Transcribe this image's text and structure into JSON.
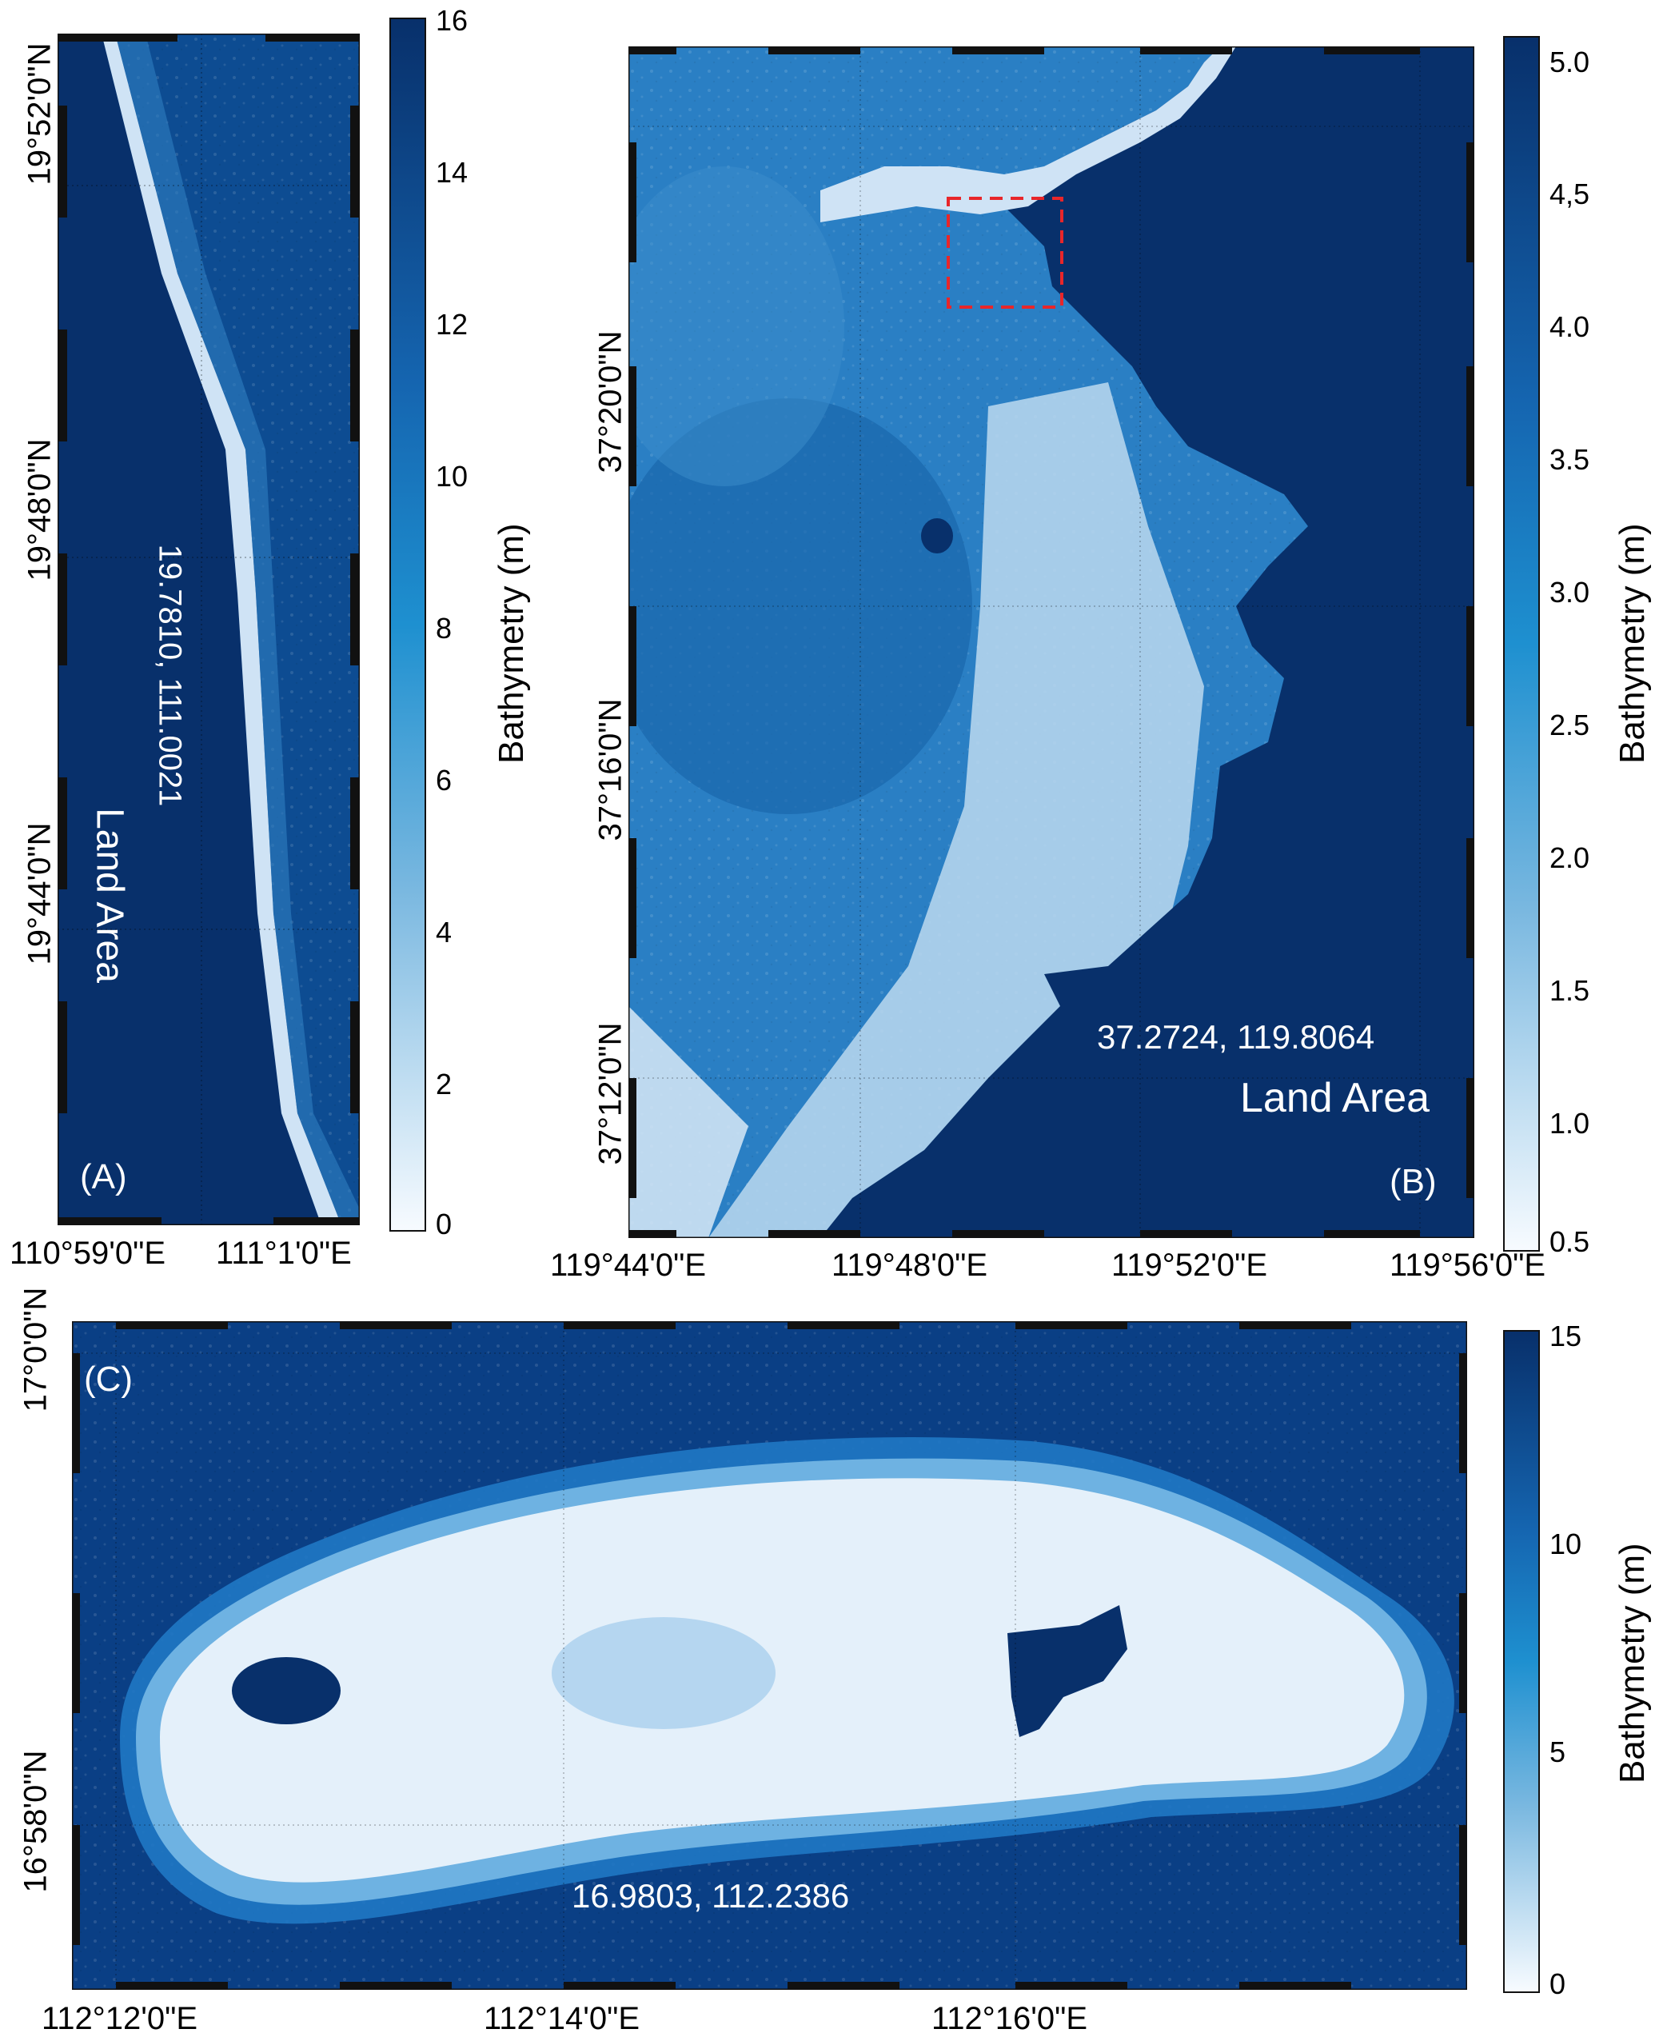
{
  "colors": {
    "deep": "#08306b",
    "mid": "#1f78b4",
    "shallow": "#deebf7",
    "white": "#f7fbff"
  },
  "panel_a": {
    "letter": "(A)",
    "coord_label": "19.7810, 111.0021",
    "land_label": "Land Area",
    "lat_labels": [
      "19°52'0\"N",
      "19°48'0\"N",
      "19°44'0\"N"
    ],
    "lon_labels": [
      "110°59'0\"E",
      "111°1'0\"E"
    ],
    "colorbar": {
      "title": "Bathymetry (m)",
      "ticks": [
        "16",
        "14",
        "12",
        "10",
        "8",
        "6",
        "4",
        "2",
        "0"
      ]
    }
  },
  "panel_b": {
    "letter": "(B)",
    "coord_label": "37.2724, 119.8064",
    "land_label": "Land Area",
    "lat_labels": [
      "37°20'0\"N",
      "37°16'0\"N",
      "37°12'0\"N"
    ],
    "lon_labels": [
      "119°44'0\"E",
      "119°48'0\"E",
      "119°52'0\"E",
      "119°56'0\"E"
    ],
    "colorbar": {
      "title": "Bathymetry (m)",
      "ticks": [
        "5.0",
        "4,5",
        "4.0",
        "3.5",
        "3.0",
        "2.5",
        "2.0",
        "1.5",
        "1.0",
        "0.5"
      ]
    }
  },
  "panel_c": {
    "letter": "(C)",
    "coord_label": "16.9803, 112.2386",
    "lat_labels": [
      "17°0'0\"N",
      "16°58'0\"N"
    ],
    "lon_labels": [
      "112°12'0\"E",
      "112°14'0\"E",
      "112°16'0\"E"
    ],
    "colorbar": {
      "title": "Bathymetry (m)",
      "ticks": [
        "15",
        "10",
        "5",
        "0"
      ]
    }
  }
}
